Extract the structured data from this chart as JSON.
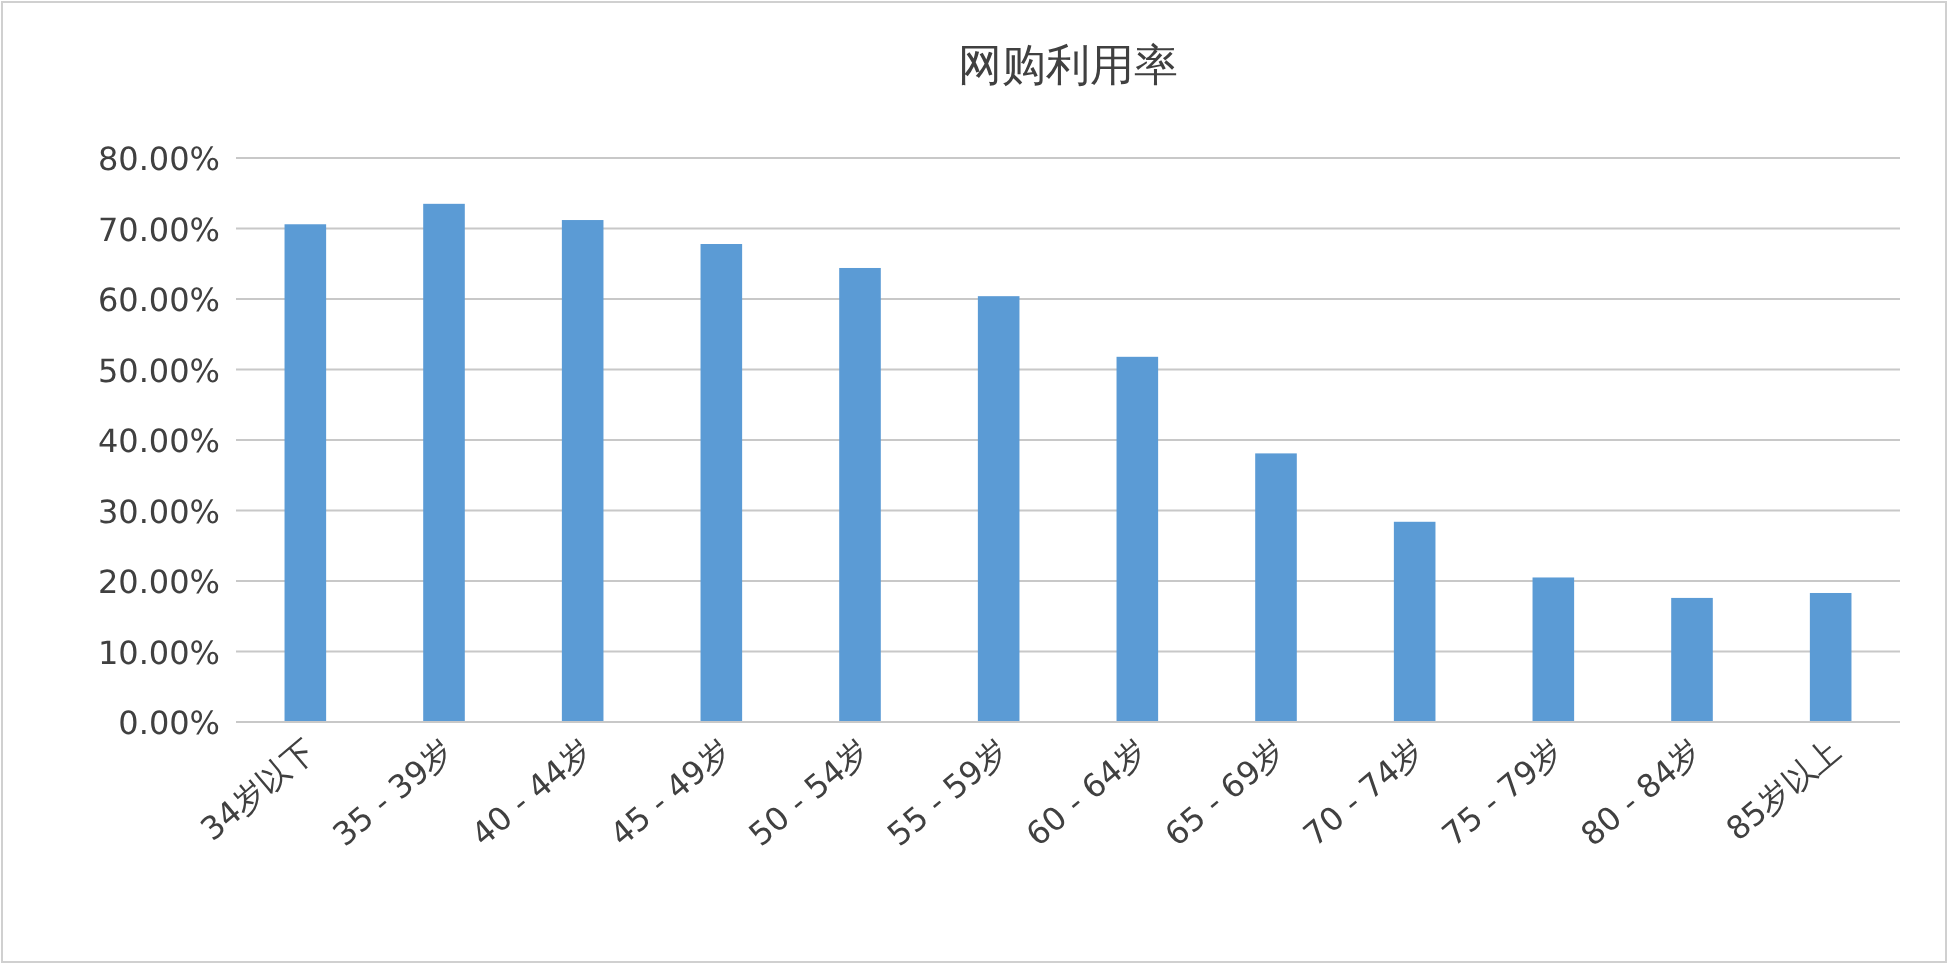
{
  "chart_data": {
    "type": "bar",
    "title": "网购利用率",
    "categories": [
      "34岁以下",
      "35 - 39岁",
      "40 - 44岁",
      "45 - 49岁",
      "50 - 54岁",
      "55 - 59岁",
      "60 - 64岁",
      "65 - 69岁",
      "70 - 74岁",
      "75 - 79岁",
      "80 - 84岁",
      "85岁以上"
    ],
    "values": [
      70.6,
      73.5,
      71.2,
      67.8,
      64.4,
      60.4,
      51.8,
      38.1,
      28.4,
      20.5,
      17.6,
      18.3
    ],
    "color": "#5b9bd5",
    "ylim": [
      0,
      80
    ],
    "yticks": [
      {
        "value": 0,
        "label": "0.00%"
      },
      {
        "value": 10,
        "label": "10.00%"
      },
      {
        "value": 20,
        "label": "20.00%"
      },
      {
        "value": 30,
        "label": "30.00%"
      },
      {
        "value": 40,
        "label": "40.00%"
      },
      {
        "value": 50,
        "label": "50.00%"
      },
      {
        "value": 60,
        "label": "60.00%"
      },
      {
        "value": 70,
        "label": "70.00%"
      },
      {
        "value": 80,
        "label": "80.00%"
      }
    ],
    "grid": "y"
  }
}
